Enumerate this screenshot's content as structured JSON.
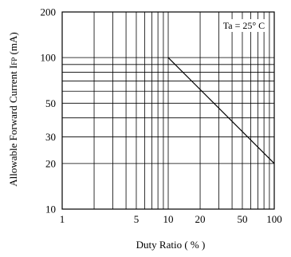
{
  "chart_data": {
    "type": "line",
    "xlabel": "Duty Ratio ( % )",
    "ylabel_main": "Allowable  Forward Current I",
    "ylabel_sub": "FP",
    "ylabel_unit": " (mA)",
    "x_scale": "log",
    "y_scale": "log",
    "xlim": [
      1,
      100
    ],
    "ylim": [
      10,
      200
    ],
    "grid": true,
    "x_ticks": [
      {
        "value": 1,
        "label": "1"
      },
      {
        "value": 5,
        "label": "5"
      },
      {
        "value": 10,
        "label": "10"
      },
      {
        "value": 20,
        "label": "20"
      },
      {
        "value": 50,
        "label": "50"
      },
      {
        "value": 100,
        "label": "100"
      }
    ],
    "y_ticks": [
      {
        "value": 10,
        "label": "10"
      },
      {
        "value": 20,
        "label": "20"
      },
      {
        "value": 30,
        "label": "30"
      },
      {
        "value": 50,
        "label": "50"
      },
      {
        "value": 100,
        "label": "100"
      },
      {
        "value": 200,
        "label": "200"
      }
    ],
    "x_grid": [
      2,
      3,
      4,
      5,
      6,
      7,
      8,
      9,
      10,
      20,
      30,
      40,
      50,
      60,
      70,
      80,
      90
    ],
    "y_grid": [
      20,
      30,
      40,
      50,
      60,
      70,
      80,
      90,
      100
    ],
    "series": [
      {
        "x": [
          10,
          100
        ],
        "y": [
          100,
          20
        ]
      }
    ],
    "annotation": "Ta = 25° C"
  }
}
